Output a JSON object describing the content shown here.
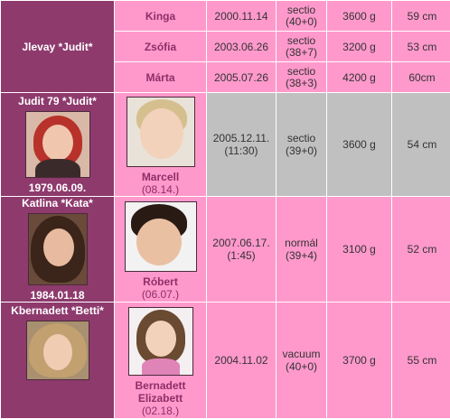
{
  "rows": [
    {
      "mother": {
        "name": "Jlevay *Judit*"
      },
      "children": [
        {
          "name": "Kinga",
          "date": "2000.11.14",
          "delivery": "sectio",
          "weeks": "(40+0)",
          "weight": "3600 g",
          "length": "59 cm"
        },
        {
          "name": "Zsófia",
          "date": "2003.06.26",
          "delivery": "sectio",
          "weeks": "(38+7)",
          "weight": "3200 g",
          "length": "53 cm"
        },
        {
          "name": "Márta",
          "date": "2005.07.26",
          "delivery": "sectio",
          "weeks": "(38+3)",
          "weight": "4200 g",
          "length": "60cm"
        }
      ]
    },
    {
      "mother": {
        "name": "Judit 79 *Judit*",
        "birth": "1979.06.09."
      },
      "child": {
        "name": "Marcell",
        "nameday": "(08.14.)",
        "date": "2005.12.11.",
        "time": "(11:30)",
        "delivery": "sectio",
        "weeks": "(39+0)",
        "weight": "3600 g",
        "length": "54 cm"
      }
    },
    {
      "mother": {
        "name": "Katlina *Kata*",
        "birth": "1984.01.18"
      },
      "child": {
        "name": "Róbert",
        "nameday": "(06.07.)",
        "date": "2007.06.17.",
        "time": "(1:45)",
        "delivery": "normál",
        "weeks": "(39+4)",
        "weight": "3100 g",
        "length": "52 cm"
      }
    },
    {
      "mother": {
        "name": "Kbernadett *Betti*"
      },
      "child": {
        "name1": "Bernadett",
        "name2": "Elizabett",
        "nameday": "(02.18.)",
        "date": "2004.11.02",
        "delivery": "vacuum",
        "weeks": "(40+0)",
        "weight": "3700 g",
        "length": "55 cm"
      }
    }
  ],
  "photo_icons": {
    "mother_judit": "woman-red-hair-photo",
    "child_marcell": "blond-toddler-photo",
    "mother_kata": "woman-dark-hair-photo",
    "child_robert": "dark-hair-baby-photo",
    "mother_betti": "woman-light-hair-photo",
    "child_bernadett": "girl-brown-hair-photo"
  },
  "colors": {
    "mother_cell": "#8e3a6d",
    "pink_cell": "#ff99cc",
    "grey_cell": "#c0c0c0",
    "name_text": "#8e2f66"
  }
}
